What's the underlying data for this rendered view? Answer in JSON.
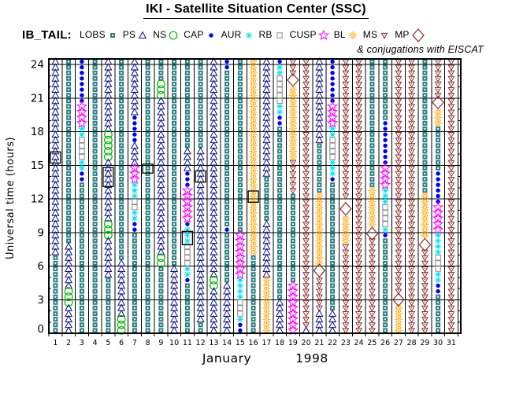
{
  "title": "IKI - Satellite Situation Center (SSC)",
  "legend": {
    "label": "IB_TAIL:",
    "note": "& conjugations with EISCAT",
    "items": [
      {
        "label": "LOBS",
        "region": "LOBS"
      },
      {
        "label": "PS",
        "region": "PS"
      },
      {
        "label": "NS",
        "region": "NS"
      },
      {
        "label": "CAP",
        "region": "CAP"
      },
      {
        "label": "AUR",
        "region": "AUR"
      },
      {
        "label": "RB",
        "region": "RB"
      },
      {
        "label": "CUSP",
        "region": "CUSP"
      },
      {
        "label": "BL",
        "region": "BL"
      },
      {
        "label": "MS",
        "region": "MS"
      },
      {
        "label": "MP",
        "region": "MP"
      }
    ]
  },
  "regions": {
    "LOBS": {
      "color": "#2E8080",
      "glyph": "filled-square"
    },
    "PS": {
      "color": "#10107E",
      "glyph": "open-triangle-up"
    },
    "NS": {
      "color": "#00BB00",
      "glyph": "open-circle"
    },
    "CAP": {
      "color": "#0000EE",
      "glyph": "filled-circle"
    },
    "AUR": {
      "color": "#00DFEE",
      "glyph": "asterisk"
    },
    "RB": {
      "color": "#8C8C8C",
      "glyph": "open-square"
    },
    "CUSP": {
      "color": "#FF00FF",
      "glyph": "open-star"
    },
    "BL": {
      "color": "#FFA500",
      "glyph": "sun"
    },
    "MS": {
      "color": "#8B2F2F",
      "glyph": "open-triangle-down"
    },
    "MP": {
      "color": "#8B2F2F",
      "glyph": "open-diamond"
    }
  },
  "eiscat_box_color": "#000000",
  "chart_data": {
    "type": "symbol-timeline",
    "title": "IKI - Satellite Situation Center (SSC)",
    "ylabel": "Universal time (hours)",
    "xlabel_month": "January",
    "xlabel_year": "1998",
    "y_ticks": [
      0,
      3,
      6,
      9,
      12,
      15,
      18,
      21,
      24
    ],
    "y_range": [
      0,
      24.5
    ],
    "x_days": [
      1,
      2,
      3,
      4,
      5,
      6,
      7,
      8,
      9,
      10,
      11,
      12,
      13,
      14,
      15,
      16,
      17,
      18,
      19,
      20,
      21,
      22,
      23,
      24,
      25,
      26,
      27,
      28,
      29,
      30,
      31
    ],
    "grid": true,
    "legend_position": "top",
    "days": [
      {
        "day": 1,
        "segments": [
          [
            "PS",
            6.9,
            24.5
          ],
          [
            "LOBS",
            0,
            6.9
          ]
        ],
        "eiscat": [
          [
            15.2,
            16.2
          ]
        ],
        "mp": []
      },
      {
        "day": 2,
        "segments": [
          [
            "LOBS",
            7.9,
            24.5
          ],
          [
            "PS",
            3.8,
            7.9
          ],
          [
            "NS",
            2.3,
            3.8
          ],
          [
            "PS",
            0,
            2.3
          ]
        ],
        "eiscat": [],
        "mp": []
      },
      {
        "day": 3,
        "segments": [
          [
            "CAP",
            20.6,
            24.5
          ],
          [
            "CUSP",
            18.5,
            20.6
          ],
          [
            "AUR",
            17.7,
            18.5
          ],
          [
            "RB",
            15.7,
            17.7
          ],
          [
            "AUR",
            14.5,
            15.7
          ],
          [
            "CAP",
            13.6,
            14.5
          ],
          [
            "LOBS",
            0,
            13.6
          ]
        ],
        "eiscat": [],
        "mp": []
      },
      {
        "day": 4,
        "segments": [
          [
            "LOBS",
            0,
            24.5
          ]
        ],
        "eiscat": [],
        "mp": []
      },
      {
        "day": 5,
        "segments": [
          [
            "PS",
            17.9,
            24.5
          ],
          [
            "NS",
            15.6,
            17.9
          ],
          [
            "PS",
            10,
            15.6
          ],
          [
            "NS",
            8.3,
            10
          ],
          [
            "PS",
            4.9,
            8.3
          ],
          [
            "LOBS",
            0,
            4.9
          ]
        ],
        "eiscat": [
          [
            13.1,
            14.8
          ]
        ],
        "mp": []
      },
      {
        "day": 6,
        "segments": [
          [
            "LOBS",
            6.7,
            24.5
          ],
          [
            "PS",
            1.6,
            6.7
          ],
          [
            "NS",
            0,
            1.6
          ]
        ],
        "eiscat": [],
        "mp": []
      },
      {
        "day": 7,
        "segments": [
          [
            "PS",
            19.4,
            24.5
          ],
          [
            "CAP",
            17.1,
            19.4
          ],
          [
            "PS",
            15,
            17.1
          ],
          [
            "CUSP",
            13.5,
            15
          ],
          [
            "AUR",
            12.2,
            13.5
          ],
          [
            "RB",
            10.9,
            12.2
          ],
          [
            "AUR",
            9.8,
            10.9
          ],
          [
            "CAP",
            9.1,
            9.8
          ],
          [
            "LOBS",
            0,
            9.1
          ]
        ],
        "eiscat": [],
        "mp": []
      },
      {
        "day": 8,
        "segments": [
          [
            "LOBS",
            0,
            24.5
          ]
        ],
        "eiscat": [
          [
            14.3,
            15.1
          ]
        ],
        "mp": []
      },
      {
        "day": 9,
        "segments": [
          [
            "LOBS",
            22.6,
            24.5
          ],
          [
            "NS",
            21,
            22.6
          ],
          [
            "PS",
            7.1,
            21
          ],
          [
            "NS",
            6.2,
            7.1
          ],
          [
            "LOBS",
            0,
            6.2
          ]
        ],
        "eiscat": [],
        "mp": []
      },
      {
        "day": 10,
        "segments": [
          [
            "LOBS",
            6.1,
            24.5
          ],
          [
            "PS",
            0,
            6.1
          ]
        ],
        "eiscat": [],
        "mp": []
      },
      {
        "day": 11,
        "segments": [
          [
            "LOBS",
            16.4,
            24.5
          ],
          [
            "PS",
            14.7,
            16.4
          ],
          [
            "CAP",
            12.8,
            14.7
          ],
          [
            "CUSP",
            10.1,
            12.8
          ],
          [
            "CAP",
            9.5,
            10.1
          ],
          [
            "AUR",
            8.2,
            9.5
          ],
          [
            "RB",
            6.2,
            8.2
          ],
          [
            "AUR",
            5.2,
            6.2
          ],
          [
            "CAP",
            4.5,
            5.2
          ],
          [
            "LOBS",
            0,
            4.5
          ]
        ],
        "eiscat": [
          [
            7.9,
            9.1
          ]
        ],
        "mp": []
      },
      {
        "day": 12,
        "segments": [
          [
            "LOBS",
            16.3,
            24.5
          ],
          [
            "PS",
            0.8,
            16.3
          ],
          [
            "LOBS",
            0,
            0.8
          ]
        ],
        "eiscat": [
          [
            13.5,
            14.5
          ]
        ],
        "mp": []
      },
      {
        "day": 13,
        "segments": [
          [
            "PS",
            5.2,
            24.5
          ],
          [
            "NS",
            4.2,
            5.2
          ],
          [
            "PS",
            0,
            4.2
          ]
        ],
        "eiscat": [],
        "mp": []
      },
      {
        "day": 14,
        "segments": [
          [
            "CAP",
            23.4,
            24.5
          ],
          [
            "LOBS",
            9.5,
            23.4
          ],
          [
            "CAP",
            8.9,
            9.5
          ],
          [
            "LOBS",
            4.5,
            8.9
          ],
          [
            "PS",
            0,
            4.5
          ]
        ],
        "eiscat": [],
        "mp": []
      },
      {
        "day": 15,
        "segments": [
          [
            "LOBS",
            8.9,
            24.5
          ],
          [
            "CUSP",
            5.2,
            8.9
          ],
          [
            "AUR",
            3.1,
            5.2
          ],
          [
            "RB",
            1.7,
            3.1
          ],
          [
            "AUR",
            0.9,
            1.7
          ],
          [
            "CAP",
            0,
            0.9
          ]
        ],
        "eiscat": [],
        "mp": []
      },
      {
        "day": 16,
        "segments": [
          [
            "BL",
            6.8,
            24.5
          ],
          [
            "LOBS",
            0,
            6.8
          ]
        ],
        "eiscat": [
          [
            11.7,
            12.7
          ]
        ],
        "mp": []
      },
      {
        "day": 17,
        "segments": [
          [
            "PS",
            14.1,
            24.5
          ],
          [
            "LOBS",
            10.2,
            14.1
          ],
          [
            "PS",
            5,
            10.2
          ],
          [
            "BL",
            0,
            5
          ]
        ],
        "eiscat": [],
        "mp": []
      },
      {
        "day": 18,
        "segments": [
          [
            "CAP",
            23.8,
            24.5
          ],
          [
            "AUR",
            22.9,
            23.8
          ],
          [
            "RB",
            20.6,
            22.9
          ],
          [
            "AUR",
            19.5,
            20.6
          ],
          [
            "CAP",
            18.5,
            19.5
          ],
          [
            "LOBS",
            3.1,
            18.5
          ],
          [
            "PS",
            0,
            3.1
          ]
        ],
        "eiscat": [],
        "mp": []
      },
      {
        "day": 19,
        "segments": [
          [
            "MS",
            23.2,
            24.5
          ],
          [
            "BL",
            15.7,
            22.1
          ],
          [
            "MS",
            12.4,
            15.7
          ],
          [
            "LOBS",
            4.5,
            12.4
          ],
          [
            "CUSP",
            0,
            4.5
          ]
        ],
        "eiscat": [],
        "mp": [
          22.6
        ]
      },
      {
        "day": 20,
        "segments": [
          [
            "MS",
            0.7,
            24.5
          ],
          [
            "PS",
            0,
            0.7
          ]
        ],
        "eiscat": [],
        "mp": []
      },
      {
        "day": 21,
        "segments": [
          [
            "PS",
            16.9,
            24.5
          ],
          [
            "LOBS",
            12.3,
            16.9
          ],
          [
            "BL",
            6,
            12.3
          ],
          [
            "MS",
            1.9,
            5.1
          ],
          [
            "PS",
            0,
            1.9
          ]
        ],
        "eiscat": [],
        "mp": [
          5.6
        ]
      },
      {
        "day": 22,
        "segments": [
          [
            "CAP",
            20.5,
            24.5
          ],
          [
            "CUSP",
            18.5,
            20.5
          ],
          [
            "AUR",
            17.4,
            18.5
          ],
          [
            "RB",
            15.3,
            17.4
          ],
          [
            "AUR",
            14,
            15.3
          ],
          [
            "CAP",
            13.3,
            14
          ],
          [
            "LOBS",
            1.9,
            13.3
          ],
          [
            "PS",
            0,
            1.9
          ]
        ],
        "eiscat": [],
        "mp": []
      },
      {
        "day": 23,
        "segments": [
          [
            "MS",
            11.8,
            24.5
          ],
          [
            "BL",
            7.9,
            10.6
          ],
          [
            "MS",
            0,
            7.9
          ]
        ],
        "eiscat": [],
        "mp": [
          11.1
        ]
      },
      {
        "day": 24,
        "segments": [
          [
            "MS",
            0,
            24.5
          ]
        ],
        "eiscat": [],
        "mp": []
      },
      {
        "day": 25,
        "segments": [
          [
            "LOBS",
            13.2,
            24.5
          ],
          [
            "BL",
            9.5,
            13.2
          ],
          [
            "MS",
            0,
            8.4
          ]
        ],
        "eiscat": [],
        "mp": [
          8.9
        ]
      },
      {
        "day": 26,
        "segments": [
          [
            "LOBS",
            19.2,
            24.5
          ],
          [
            "CAP",
            15.1,
            19.2
          ],
          [
            "CUSP",
            13.2,
            15.1
          ],
          [
            "AUR",
            11.4,
            13.2
          ],
          [
            "RB",
            9.6,
            11.4
          ],
          [
            "AUR",
            9.1,
            9.6
          ],
          [
            "CAP",
            8.5,
            9.1
          ],
          [
            "LOBS",
            0,
            8.5
          ]
        ],
        "eiscat": [],
        "mp": []
      },
      {
        "day": 27,
        "segments": [
          [
            "MS",
            3.6,
            24.5
          ],
          [
            "BL",
            0,
            2.4
          ]
        ],
        "eiscat": [],
        "mp": [
          3.0
        ]
      },
      {
        "day": 28,
        "segments": [
          [
            "MS",
            0,
            24.5
          ]
        ],
        "eiscat": [],
        "mp": []
      },
      {
        "day": 29,
        "segments": [
          [
            "LOBS",
            12.4,
            24.5
          ],
          [
            "BL",
            8.5,
            12.4
          ],
          [
            "MS",
            0,
            7.3
          ]
        ],
        "eiscat": [],
        "mp": [
          7.9
        ]
      },
      {
        "day": 30,
        "segments": [
          [
            "MS",
            21.2,
            24.5
          ],
          [
            "BL",
            18.3,
            20.1
          ],
          [
            "LOBS",
            14.3,
            18.3
          ],
          [
            "CAP",
            11.5,
            14.3
          ],
          [
            "CUSP",
            9,
            11.5
          ],
          [
            "AUR",
            7.2,
            9
          ],
          [
            "RB",
            5.4,
            7.2
          ],
          [
            "AUR",
            4.5,
            5.4
          ],
          [
            "CAP",
            3.5,
            4.5
          ],
          [
            "LOBS",
            0,
            3.5
          ]
        ],
        "eiscat": [],
        "mp": [
          20.6
        ]
      },
      {
        "day": 31,
        "segments": [
          [
            "MS",
            0,
            24.5
          ]
        ],
        "eiscat": [],
        "mp": []
      }
    ]
  }
}
